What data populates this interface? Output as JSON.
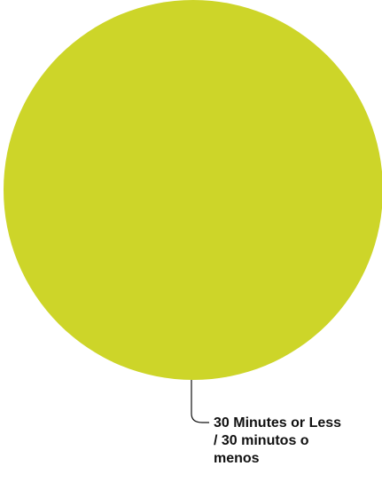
{
  "chart_data": {
    "type": "pie",
    "title": "",
    "slices": [
      {
        "label": "30 Minutes or Less\n/ 30 minutos o\nmenos",
        "value": 100,
        "color": "#cdd529"
      }
    ],
    "legend": "none",
    "data_labels": "outside-with-leader-line"
  }
}
